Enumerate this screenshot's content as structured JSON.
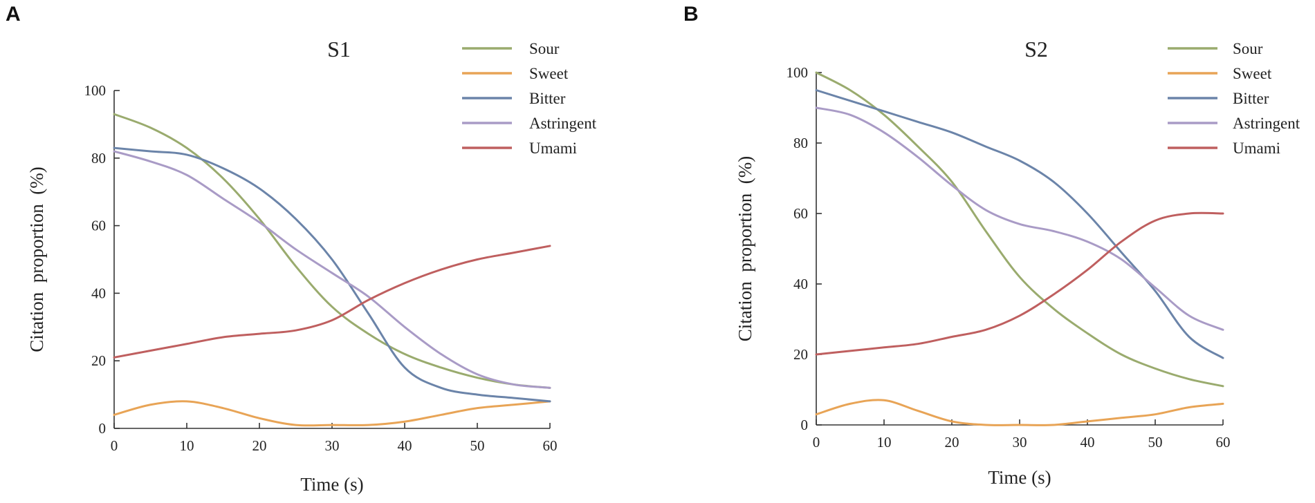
{
  "panels": [
    {
      "letter": "A"
    },
    {
      "letter": "B"
    }
  ],
  "chart_data": [
    {
      "type": "line",
      "title": "S1",
      "xlabel": "Time (s)",
      "ylabel": "Citation  proportion  (%)",
      "xlim": [
        0,
        60
      ],
      "ylim": [
        0,
        100
      ],
      "xticks": [
        "0",
        "10",
        "20",
        "30",
        "40",
        "50",
        "60"
      ],
      "yticks": [
        "0",
        "20",
        "40",
        "60",
        "80",
        "100"
      ],
      "legend_position": "top-right",
      "x": [
        0,
        5,
        10,
        15,
        20,
        25,
        30,
        35,
        40,
        45,
        50,
        55,
        60
      ],
      "series": [
        {
          "name": "Sour",
          "color": "#9aab6e",
          "values": [
            93,
            89,
            83,
            74,
            62,
            48,
            36,
            28,
            22,
            18,
            15,
            13,
            12
          ]
        },
        {
          "name": "Sweet",
          "color": "#e8a456",
          "values": [
            4,
            7,
            8,
            6,
            3,
            1,
            1,
            1,
            2,
            4,
            6,
            7,
            8
          ]
        },
        {
          "name": "Bitter",
          "color": "#6b84a9",
          "values": [
            83,
            82,
            81,
            77,
            71,
            62,
            50,
            34,
            18,
            12,
            10,
            9,
            8
          ]
        },
        {
          "name": "Astringent",
          "color": "#a99bc6",
          "values": [
            82,
            79,
            75,
            68,
            61,
            53,
            46,
            39,
            30,
            22,
            16,
            13,
            12
          ]
        },
        {
          "name": "Umami",
          "color": "#bf5f5f",
          "values": [
            21,
            23,
            25,
            27,
            28,
            29,
            32,
            38,
            43,
            47,
            50,
            52,
            54
          ]
        }
      ]
    },
    {
      "type": "line",
      "title": "S2",
      "xlabel": "Time (s)",
      "ylabel": "Citation  proportion  (%)",
      "xlim": [
        0,
        60
      ],
      "ylim": [
        0,
        100
      ],
      "xticks": [
        "0",
        "10",
        "20",
        "30",
        "40",
        "50",
        "60"
      ],
      "yticks": [
        "0",
        "20",
        "40",
        "60",
        "80",
        "100"
      ],
      "legend_position": "top-right",
      "x": [
        0,
        5,
        10,
        15,
        20,
        25,
        30,
        35,
        40,
        45,
        50,
        55,
        60
      ],
      "series": [
        {
          "name": "Sour",
          "color": "#9aab6e",
          "values": [
            100,
            95,
            88,
            79,
            69,
            55,
            42,
            33,
            26,
            20,
            16,
            13,
            11
          ]
        },
        {
          "name": "Sweet",
          "color": "#e8a456",
          "values": [
            3,
            6,
            7,
            4,
            1,
            0,
            0,
            0,
            1,
            2,
            3,
            5,
            6
          ]
        },
        {
          "name": "Bitter",
          "color": "#6b84a9",
          "values": [
            95,
            92,
            89,
            86,
            83,
            79,
            75,
            69,
            60,
            49,
            38,
            25,
            19
          ]
        },
        {
          "name": "Astringent",
          "color": "#a99bc6",
          "values": [
            90,
            88,
            83,
            76,
            68,
            61,
            57,
            55,
            52,
            47,
            39,
            31,
            27
          ]
        },
        {
          "name": "Umami",
          "color": "#bf5f5f",
          "values": [
            20,
            21,
            22,
            23,
            25,
            27,
            31,
            37,
            44,
            52,
            58,
            60,
            60
          ]
        }
      ]
    }
  ]
}
